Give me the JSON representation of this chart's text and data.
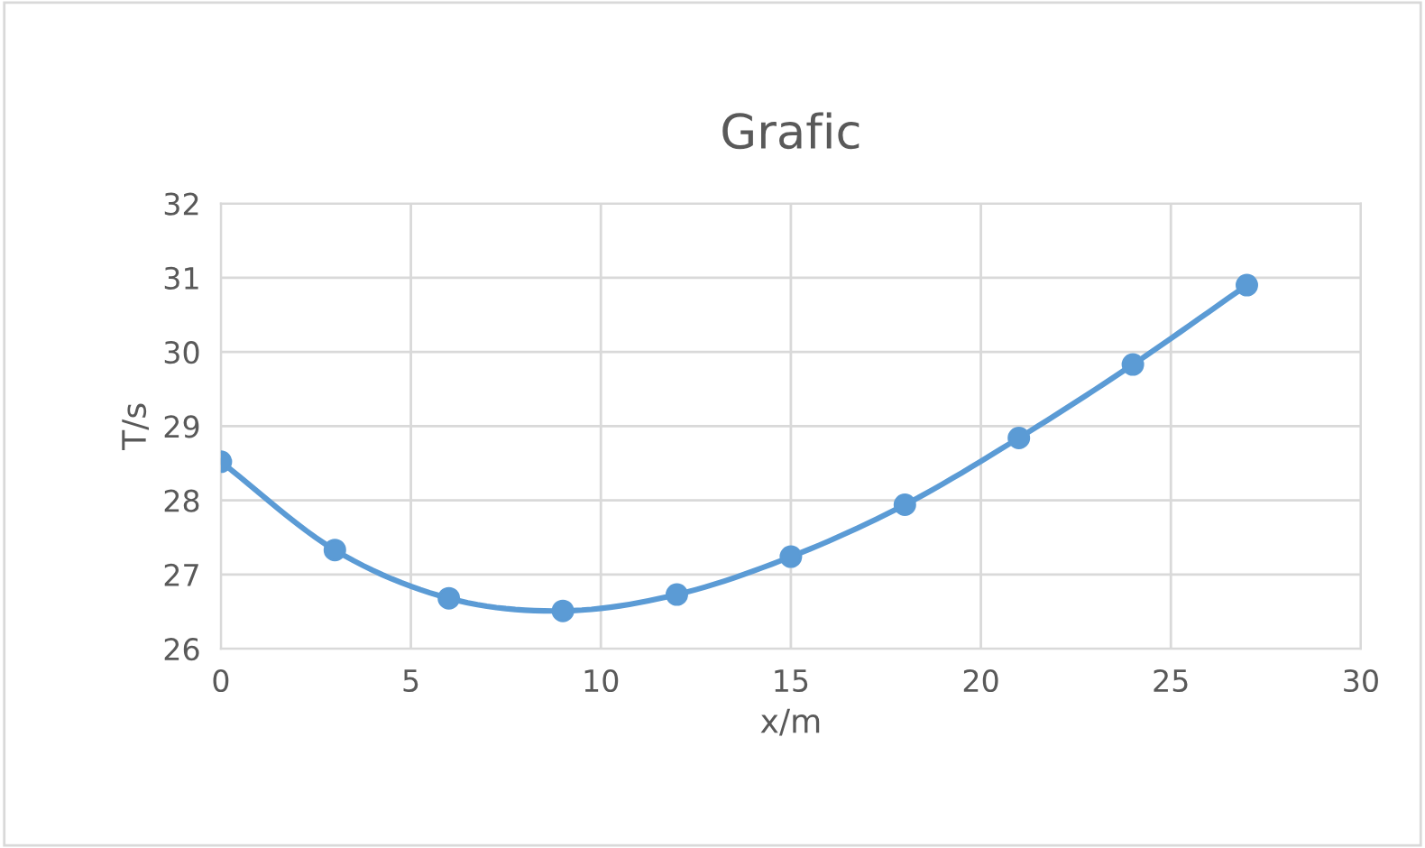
{
  "chart_data": {
    "type": "line",
    "title": "Grafic",
    "xlabel": "x/m",
    "ylabel": "T/s",
    "x": [
      0,
      3,
      6,
      9,
      12,
      15,
      18,
      21,
      24,
      27
    ],
    "series": [
      {
        "color": "#5b9bd5",
        "values": [
          28.52,
          27.33,
          26.68,
          26.51,
          26.73,
          27.24,
          27.94,
          28.84,
          29.83,
          30.9
        ]
      }
    ],
    "xlim": [
      0,
      30
    ],
    "ylim": [
      26,
      32
    ],
    "xticks": [
      0,
      5,
      10,
      15,
      20,
      25,
      30
    ],
    "yticks": [
      26,
      27,
      28,
      29,
      30,
      31,
      32
    ],
    "grid": true,
    "legend": false,
    "marker": "circle",
    "line_style": "solid"
  }
}
